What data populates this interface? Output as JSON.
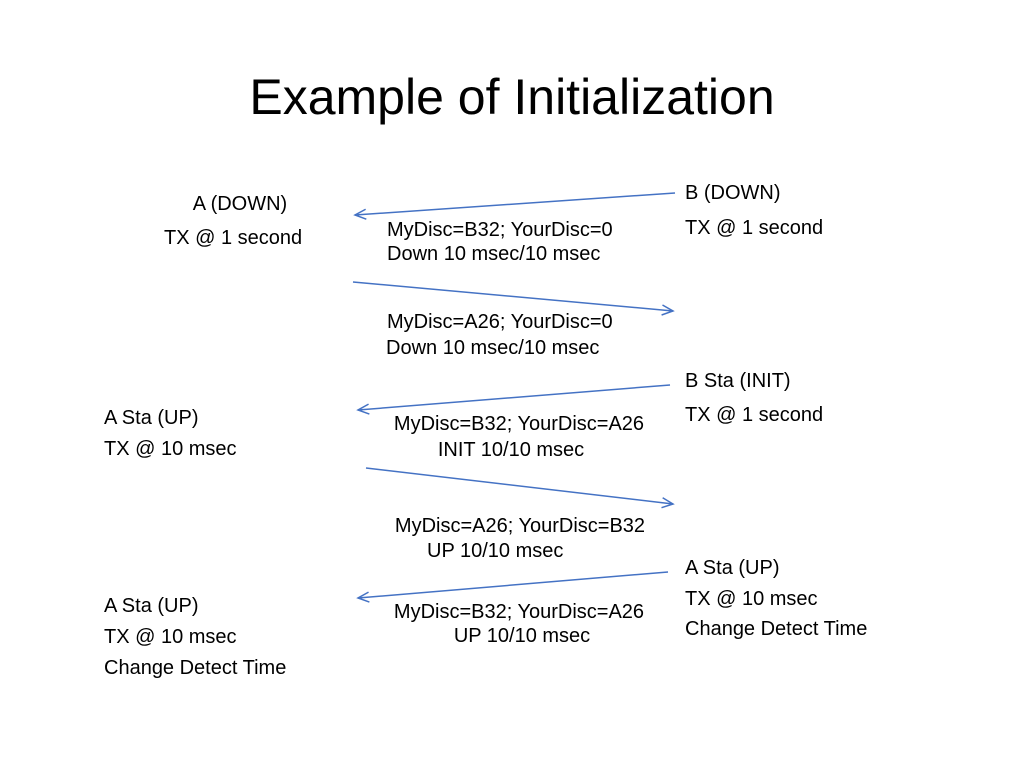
{
  "title": "Example of Initialization",
  "colors": {
    "arrow": "#4472C4",
    "text": "#000000",
    "background": "#ffffff"
  },
  "left": {
    "a_down": "A  (DOWN)",
    "a_down_tx": "TX @ 1 second",
    "a_sta_up_1": "A Sta (UP)",
    "a_sta_up_1_tx": "TX @ 10 msec",
    "a_sta_up_2": "A Sta (UP)",
    "a_sta_up_2_tx": "TX @ 10 msec",
    "a_sta_up_2_detect": "Change Detect Time"
  },
  "right": {
    "b_down": "B (DOWN)",
    "b_down_tx": "TX @ 1 second",
    "b_sta_init": "B Sta (INIT)",
    "b_sta_init_tx": "TX @ 1 second",
    "a_sta_up": "A Sta (UP)",
    "a_sta_up_tx": "TX @ 10 msec",
    "a_sta_up_detect": "Change Detect Time"
  },
  "messages": [
    {
      "line1": "MyDisc=B32; YourDisc=0",
      "line2": "Down 10 msec/10 msec"
    },
    {
      "line1": "MyDisc=A26; YourDisc=0",
      "line2": "Down 10 msec/10 msec"
    },
    {
      "line1": "MyDisc=B32; YourDisc=A26",
      "line2": "INIT 10/10 msec"
    },
    {
      "line1": "MyDisc=A26; YourDisc=B32",
      "line2": "UP 10/10 msec"
    },
    {
      "line1": "MyDisc=B32; YourDisc=A26",
      "line2": "UP 10/10 msec"
    }
  ]
}
